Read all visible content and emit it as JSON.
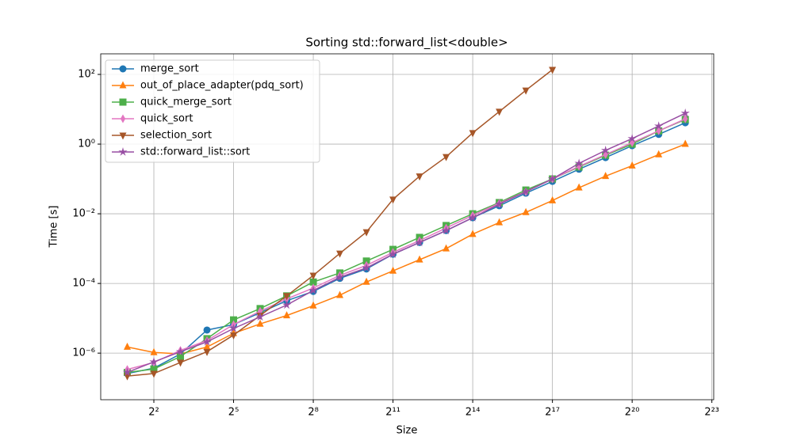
{
  "chart_data": {
    "type": "line",
    "title": "Sorting std::forward_list<double>",
    "x_label": "Size",
    "y_label": "Time [s]",
    "x_log_base": 2,
    "y_log_base": 10,
    "grid": true,
    "legend": "upper left",
    "x": [
      2,
      4,
      8,
      16,
      32,
      64,
      128,
      256,
      512,
      1024,
      2048,
      4096,
      8192,
      16384,
      32768,
      65536,
      131072,
      262144,
      524288,
      1048576,
      2097152,
      4194304
    ],
    "xlim": [
      1,
      8800000
    ],
    "xticks": [
      {
        "value": 4,
        "label": "2²"
      },
      {
        "value": 32,
        "label": "2⁵"
      },
      {
        "value": 256,
        "label": "2⁸"
      },
      {
        "value": 2048,
        "label": "2¹¹"
      },
      {
        "value": 16384,
        "label": "2¹⁴"
      },
      {
        "value": 131072,
        "label": "2¹⁷"
      },
      {
        "value": 1048576,
        "label": "2²⁰"
      },
      {
        "value": 8388608,
        "label": "2²³"
      }
    ],
    "ylim": [
      4.6e-08,
      390
    ],
    "yticks": [
      {
        "value": 1e-06,
        "label": "10⁻⁶"
      },
      {
        "value": 0.0001,
        "label": "10⁻⁴"
      },
      {
        "value": 0.01,
        "label": "10⁻²"
      },
      {
        "value": 1,
        "label": "10⁰"
      },
      {
        "value": 100,
        "label": "10²"
      }
    ],
    "series": [
      {
        "name": "merge_sort",
        "color": "#1f77b4",
        "marker": "circle",
        "values": [
          2.6e-07,
          3.7e-07,
          9.5e-07,
          4.6e-06,
          6.6e-06,
          1.45e-05,
          3.2e-05,
          5.9e-05,
          0.00014,
          0.00026,
          0.00069,
          0.0015,
          0.0033,
          0.0077,
          0.017,
          0.039,
          0.085,
          0.19,
          0.41,
          0.9,
          1.9,
          4.1
        ]
      },
      {
        "name": "out_of_place_adapter(pdq_sort)",
        "color": "#ff7f0e",
        "marker": "triangle-up",
        "values": [
          1.5e-06,
          1.05e-06,
          9.5e-07,
          1.5e-06,
          3.7e-06,
          6.9e-06,
          1.2e-05,
          2.3e-05,
          4.6e-05,
          0.00011,
          0.00023,
          0.00048,
          0.001,
          0.0026,
          0.0056,
          0.011,
          0.024,
          0.056,
          0.12,
          0.24,
          0.5,
          1.0
        ]
      },
      {
        "name": "quick_merge_sort",
        "color": "#4daf4a",
        "marker": "square",
        "values": [
          2.8e-07,
          3.5e-07,
          8e-07,
          2.6e-06,
          9e-06,
          1.9e-05,
          4.4e-05,
          0.00011,
          0.0002,
          0.00044,
          0.00095,
          0.0021,
          0.0046,
          0.01,
          0.021,
          0.048,
          0.1,
          0.22,
          0.48,
          1.0,
          2.4,
          5.1
        ]
      },
      {
        "name": "quick_sort",
        "color": "#e377c2",
        "marker": "diamond",
        "values": [
          3.4e-07,
          5.4e-07,
          1.2e-06,
          2.3e-06,
          6.6e-06,
          1.6e-05,
          3.6e-05,
          7.4e-05,
          0.00017,
          0.00033,
          0.00078,
          0.0017,
          0.0039,
          0.009,
          0.02,
          0.043,
          0.1,
          0.23,
          0.5,
          1.1,
          2.4,
          5.3
        ]
      },
      {
        "name": "selection_sort",
        "color": "#a65628",
        "marker": "triangle-down",
        "values": [
          2.2e-07,
          2.6e-07,
          5.4e-07,
          1.1e-06,
          3.3e-06,
          1.2e-05,
          4.4e-05,
          0.00017,
          0.00073,
          0.003,
          0.026,
          0.12,
          0.43,
          2.1,
          8.6,
          35,
          137,
          null,
          null,
          null,
          null,
          null
        ]
      },
      {
        "name": "std::forward_list::sort",
        "color": "#984ea3",
        "marker": "star",
        "values": [
          2.8e-07,
          5.6e-07,
          1.1e-06,
          2.1e-06,
          5.1e-06,
          1.1e-05,
          2.4e-05,
          6.3e-05,
          0.00015,
          0.00028,
          0.00069,
          0.0015,
          0.0033,
          0.0077,
          0.019,
          0.043,
          0.1,
          0.28,
          0.66,
          1.44,
          3.3,
          7.7
        ]
      }
    ]
  }
}
